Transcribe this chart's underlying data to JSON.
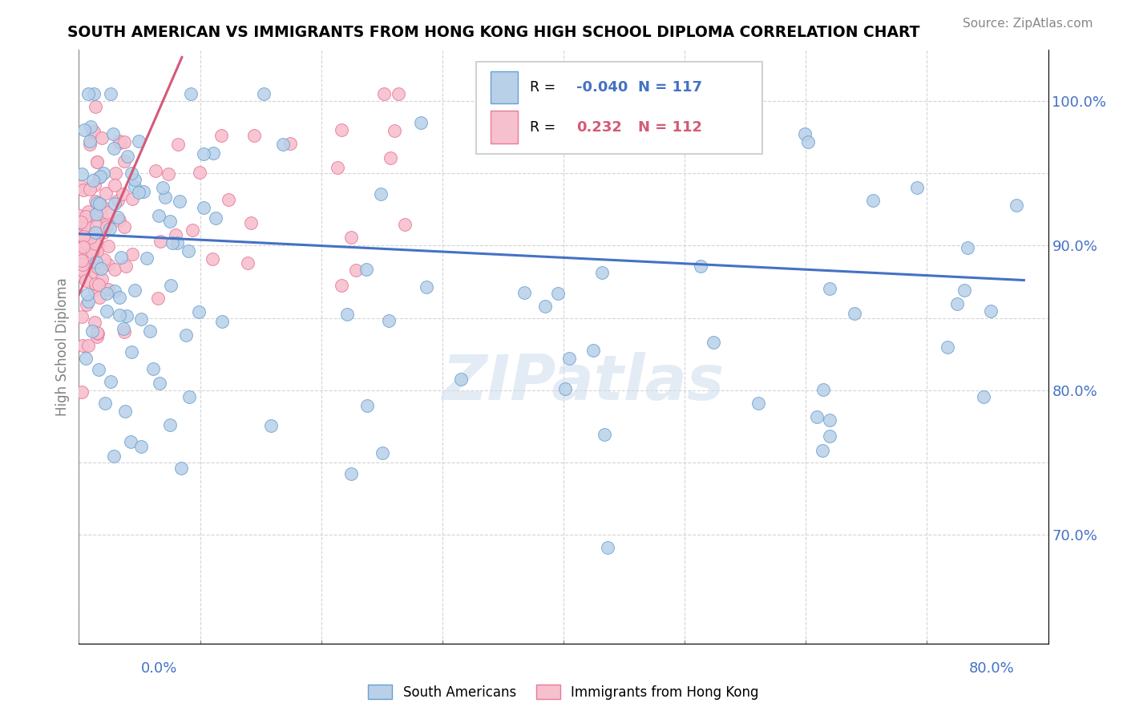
{
  "title": "SOUTH AMERICAN VS IMMIGRANTS FROM HONG KONG HIGH SCHOOL DIPLOMA CORRELATION CHART",
  "source": "Source: ZipAtlas.com",
  "ylabel": "High School Diploma",
  "xlim": [
    0.0,
    0.8
  ],
  "ylim": [
    0.625,
    1.035
  ],
  "r_blue": -0.04,
  "n_blue": 117,
  "r_pink": 0.232,
  "n_pink": 112,
  "blue_color": "#b8d0e8",
  "blue_edge_color": "#6a9fd0",
  "blue_line_color": "#4472c4",
  "pink_color": "#f7c0ce",
  "pink_edge_color": "#e87a9a",
  "pink_line_color": "#d45a78",
  "legend_label_blue": "South Americans",
  "legend_label_pink": "Immigrants from Hong Kong",
  "watermark": "ZIPatlas",
  "ytick_labels": [
    "70.0%",
    "",
    "80.0%",
    "",
    "90.0%",
    "",
    "100.0%"
  ],
  "yticks": [
    0.7,
    0.75,
    0.8,
    0.85,
    0.9,
    0.95,
    1.0
  ]
}
